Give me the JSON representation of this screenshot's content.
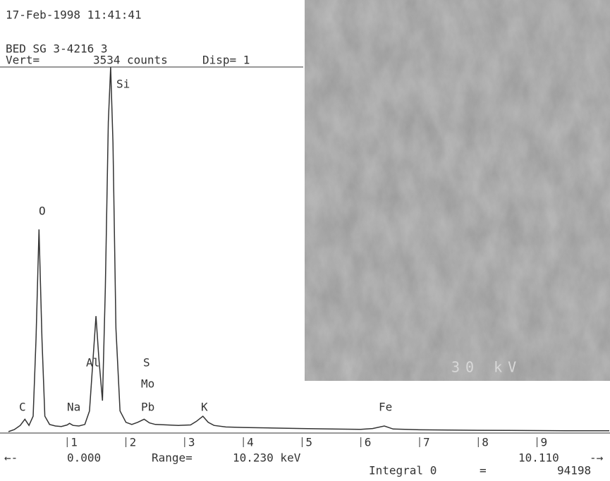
{
  "header": {
    "datetime": "17-Feb-1998 11:41:41",
    "sample": "BED SG 3-4216 3",
    "vert_label": "Vert=",
    "vert_value": "3534",
    "vert_unit": "counts",
    "disp": "Disp= 1"
  },
  "chart_data": {
    "type": "line",
    "color": "#333333",
    "x": [
      0.0,
      0.1,
      0.2,
      0.28,
      0.35,
      0.42,
      0.47,
      0.52,
      0.57,
      0.62,
      0.7,
      0.8,
      0.9,
      1.0,
      1.04,
      1.1,
      1.2,
      1.3,
      1.38,
      1.44,
      1.49,
      1.54,
      1.6,
      1.65,
      1.7,
      1.74,
      1.78,
      1.83,
      1.9,
      2.0,
      2.1,
      2.2,
      2.31,
      2.4,
      2.5,
      2.7,
      2.9,
      3.1,
      3.2,
      3.31,
      3.4,
      3.5,
      3.7,
      4.0,
      4.5,
      5.0,
      5.5,
      6.0,
      6.2,
      6.4,
      6.55,
      7.0,
      7.5,
      8.0,
      8.5,
      9.0,
      9.5,
      10.0,
      10.23
    ],
    "values": [
      0,
      20,
      60,
      120,
      60,
      150,
      900,
      1960,
      900,
      150,
      70,
      55,
      50,
      65,
      80,
      60,
      55,
      70,
      200,
      700,
      1120,
      700,
      300,
      1400,
      3000,
      3534,
      2800,
      1000,
      200,
      90,
      70,
      90,
      120,
      85,
      70,
      65,
      60,
      65,
      100,
      150,
      90,
      60,
      45,
      40,
      35,
      30,
      25,
      22,
      30,
      55,
      25,
      18,
      15,
      13,
      12,
      10,
      9,
      8,
      8
    ],
    "xlim": [
      0,
      10.23
    ],
    "ylim": [
      0,
      3534
    ],
    "xticks": [
      1,
      2,
      3,
      4,
      5,
      6,
      7,
      8,
      9
    ],
    "peak_labels": [
      "Si",
      "O",
      "Al",
      "S",
      "Mo",
      "Pb",
      "C",
      "Na",
      "K",
      "Fe"
    ]
  },
  "footer": {
    "start": "0.000",
    "range_label": "Range=",
    "range_value": "10.230 keV",
    "end": "10.110",
    "integral_label": "Integral 0",
    "equals": "=",
    "integral_value": "94198"
  },
  "image": {
    "overlay": "30 kV"
  }
}
